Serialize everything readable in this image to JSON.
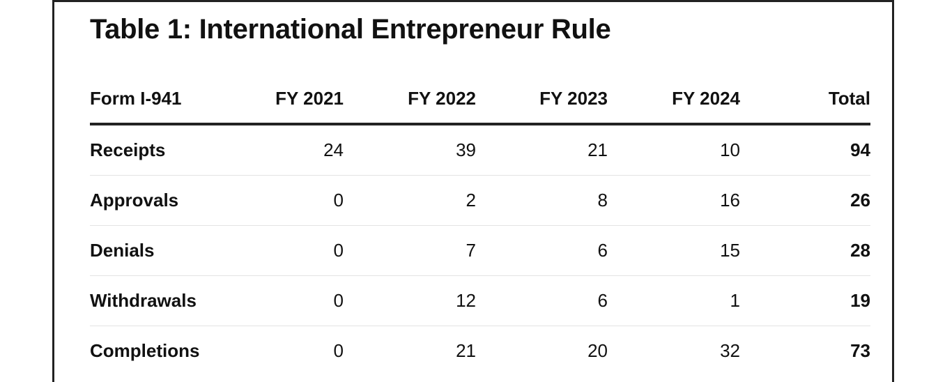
{
  "chart_data": {
    "type": "table",
    "title": "Table 1: International Entrepreneur Rule",
    "columns": [
      "Form I-941",
      "FY 2021",
      "FY 2022",
      "FY 2023",
      "FY 2024",
      "Total"
    ],
    "rows": [
      {
        "label": "Receipts",
        "values": [
          "24",
          "39",
          "21",
          "10"
        ],
        "total": "94"
      },
      {
        "label": "Approvals",
        "values": [
          "0",
          "2",
          "8",
          "16"
        ],
        "total": "26"
      },
      {
        "label": "Denials",
        "values": [
          "0",
          "7",
          "6",
          "15"
        ],
        "total": "28"
      },
      {
        "label": "Withdrawals",
        "values": [
          "0",
          "12",
          "6",
          "1"
        ],
        "total": "19"
      },
      {
        "label": "Completions",
        "values": [
          "0",
          "21",
          "20",
          "32"
        ],
        "total": "73"
      }
    ]
  }
}
